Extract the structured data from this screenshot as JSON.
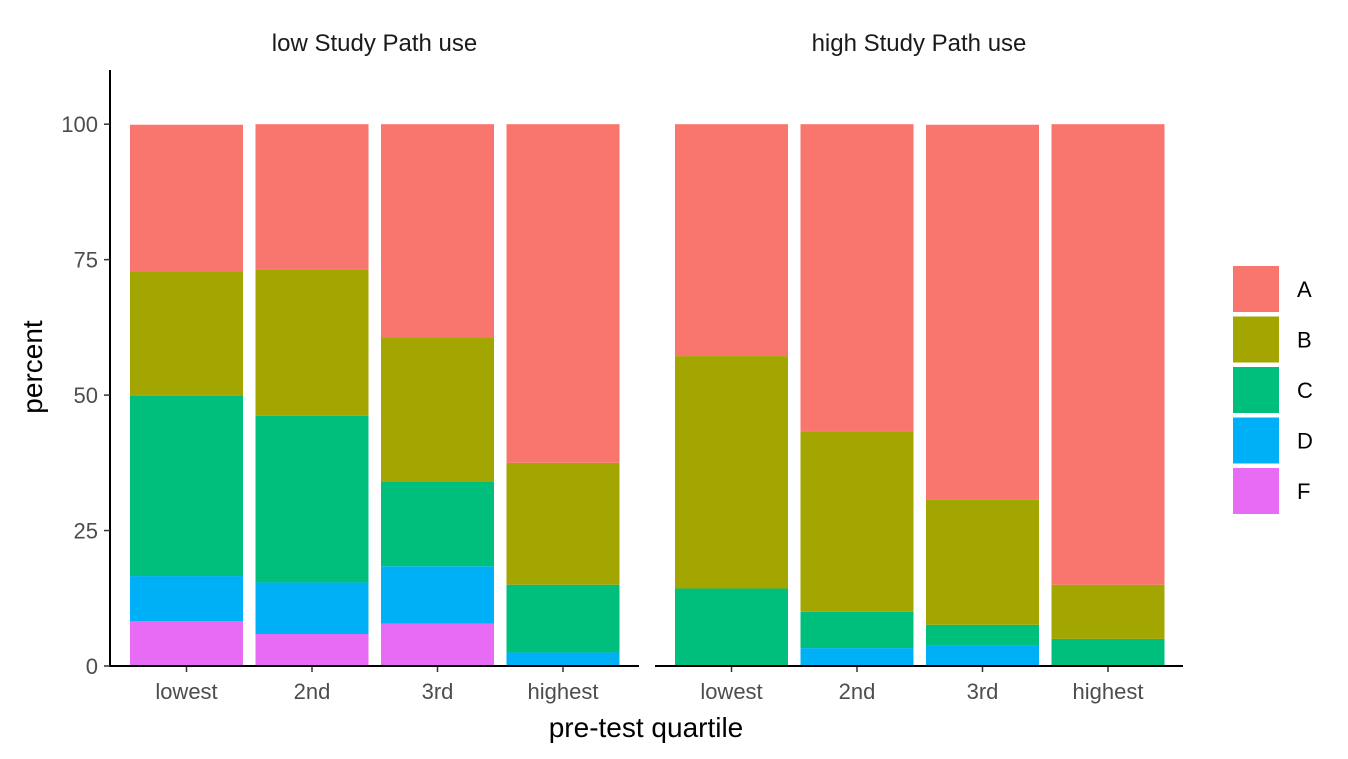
{
  "chart_data": {
    "type": "bar",
    "stacked": true,
    "facet_order": [
      "low Study Path use",
      "high Study Path use"
    ],
    "xlabel": "pre-test quartile",
    "ylabel": "percent",
    "categories": [
      "lowest",
      "2nd",
      "3rd",
      "highest"
    ],
    "ylim": [
      0,
      110
    ],
    "yticks": [
      0,
      25,
      50,
      75,
      100
    ],
    "grid": false,
    "legend_position": "right",
    "stack_order_bottom_to_top": [
      "F",
      "D",
      "C",
      "B",
      "A"
    ],
    "legend": [
      {
        "label": "A",
        "color": "#F8766D"
      },
      {
        "label": "B",
        "color": "#A3A500"
      },
      {
        "label": "C",
        "color": "#00BF7D"
      },
      {
        "label": "D",
        "color": "#00B0F6"
      },
      {
        "label": "F",
        "color": "#E76BF3"
      }
    ],
    "panels": [
      {
        "title": "low Study Path use",
        "series": [
          {
            "name": "F",
            "values": [
              8.3,
              5.9,
              7.8,
              0
            ]
          },
          {
            "name": "D",
            "values": [
              8.3,
              9.5,
              10.6,
              2.5
            ]
          },
          {
            "name": "C",
            "values": [
              33.3,
              30.8,
              15.7,
              12.5
            ]
          },
          {
            "name": "B",
            "values": [
              22.9,
              27.0,
              26.6,
              22.5
            ]
          },
          {
            "name": "A",
            "values": [
              27.1,
              26.8,
              39.3,
              62.5
            ]
          }
        ]
      },
      {
        "title": "high Study Path use",
        "series": [
          {
            "name": "F",
            "values": [
              0,
              0,
              0,
              0
            ]
          },
          {
            "name": "D",
            "values": [
              0,
              3.3,
              3.8,
              0
            ]
          },
          {
            "name": "C",
            "values": [
              14.3,
              6.7,
              3.8,
              5.0
            ]
          },
          {
            "name": "B",
            "values": [
              42.9,
              33.3,
              23.1,
              10.0
            ]
          },
          {
            "name": "A",
            "values": [
              42.8,
              56.7,
              69.2,
              85.0
            ]
          }
        ]
      }
    ]
  }
}
